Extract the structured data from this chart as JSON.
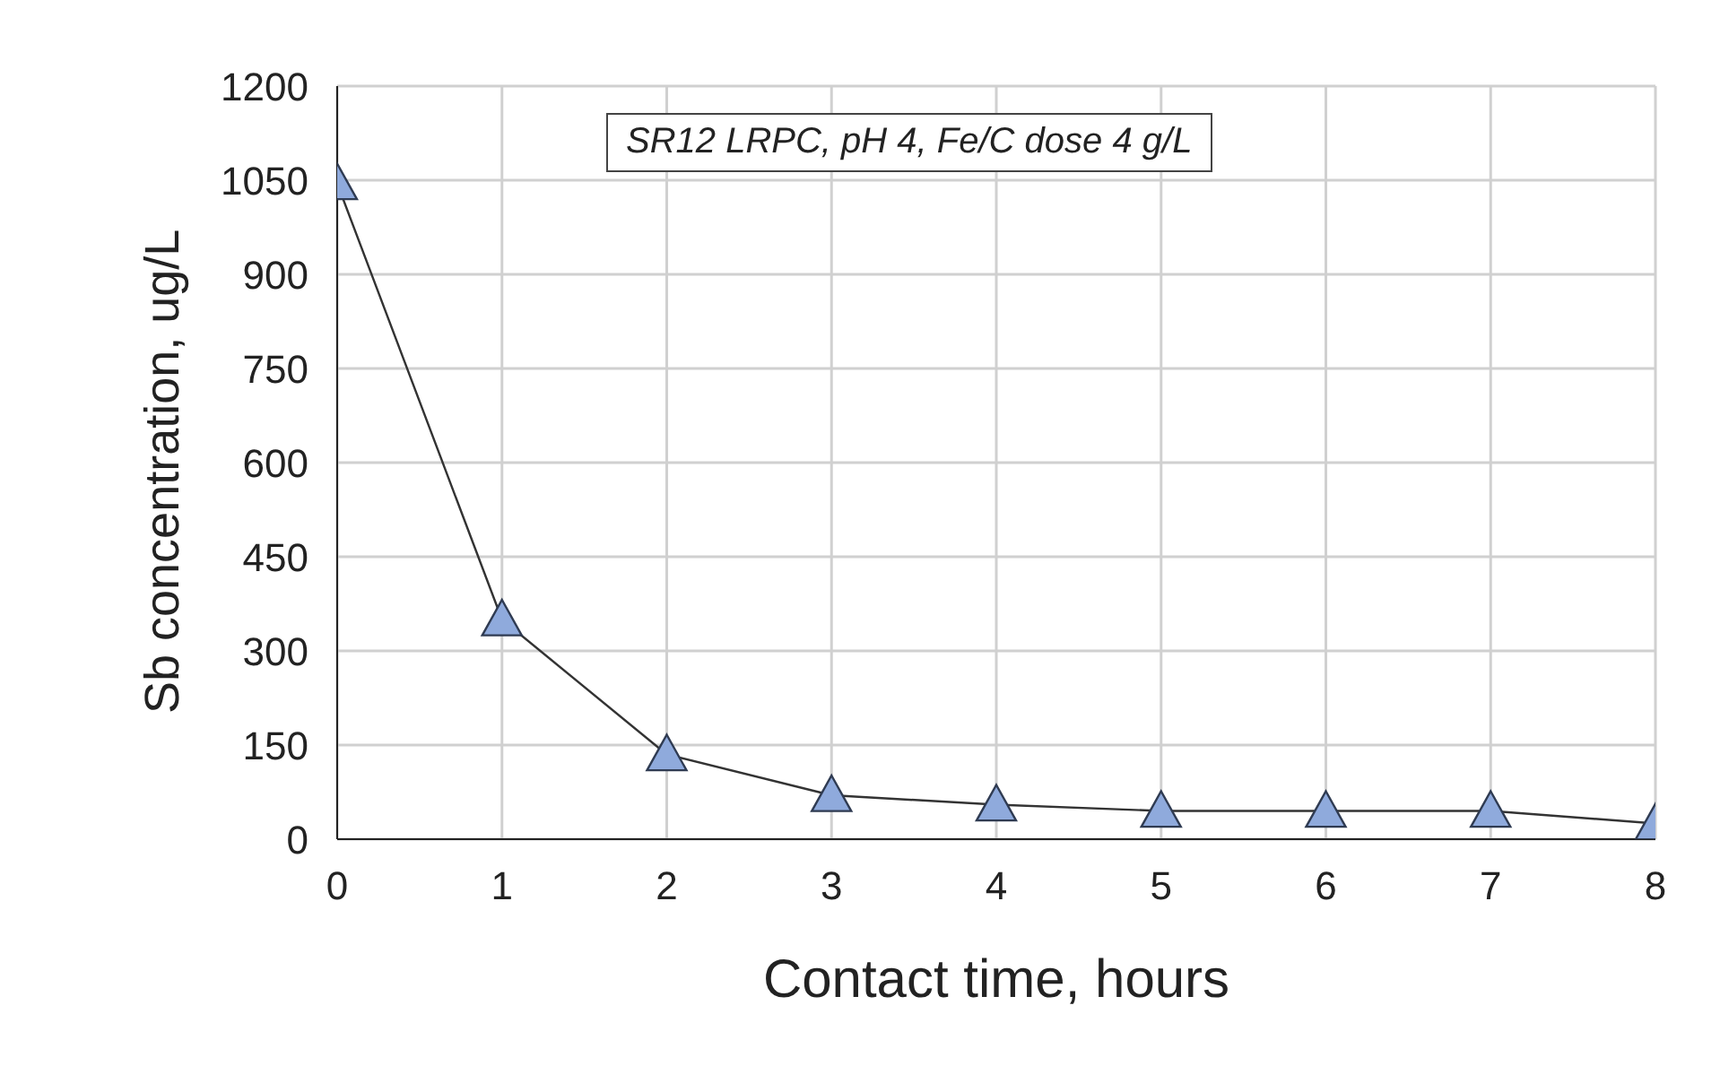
{
  "chart_data": {
    "type": "line",
    "xlabel": "Contact time, hours",
    "ylabel": "Sb concentration, ug/L",
    "annotations": [
      "SR12 LRPC, pH 4, Fe/C dose 4 g/L"
    ],
    "x": [
      0,
      1,
      2,
      3,
      4,
      5,
      6,
      7,
      8
    ],
    "series": [
      {
        "color": "#8faadc",
        "values": [
          1045,
          350,
          135,
          70,
          55,
          45,
          45,
          45,
          25
        ]
      }
    ],
    "xlim": [
      0,
      8
    ],
    "xticks": [
      0,
      1,
      2,
      3,
      4,
      5,
      6,
      7,
      8
    ],
    "ylim": [
      0,
      1200
    ],
    "yticks": [
      0,
      150,
      300,
      450,
      600,
      750,
      900,
      1050,
      1200
    ],
    "grid": true,
    "legend": false,
    "marker": "triangle",
    "line_style": "solid"
  }
}
